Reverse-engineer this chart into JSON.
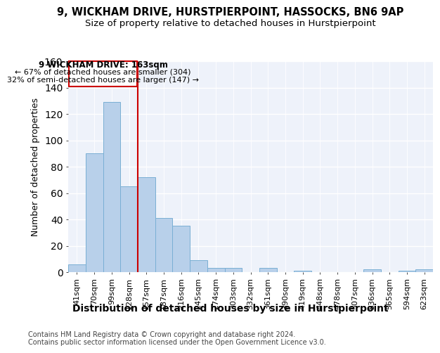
{
  "title_line1": "9, WICKHAM DRIVE, HURSTPIERPOINT, HASSOCKS, BN6 9AP",
  "title_line2": "Size of property relative to detached houses in Hurstpierpoint",
  "xlabel": "Distribution of detached houses by size in Hurstpierpoint",
  "ylabel": "Number of detached properties",
  "footnote": "Contains HM Land Registry data © Crown copyright and database right 2024.\nContains public sector information licensed under the Open Government Licence v3.0.",
  "categories": [
    "41sqm",
    "70sqm",
    "99sqm",
    "128sqm",
    "157sqm",
    "187sqm",
    "216sqm",
    "245sqm",
    "274sqm",
    "303sqm",
    "332sqm",
    "361sqm",
    "390sqm",
    "419sqm",
    "448sqm",
    "478sqm",
    "507sqm",
    "536sqm",
    "565sqm",
    "594sqm",
    "623sqm"
  ],
  "values": [
    6,
    90,
    129,
    65,
    72,
    41,
    35,
    9,
    3,
    3,
    0,
    3,
    0,
    1,
    0,
    0,
    0,
    2,
    0,
    1,
    2
  ],
  "bar_color": "#b8d0ea",
  "bar_edge_color": "#7aafd4",
  "vline_color": "#cc0000",
  "vline_x_index": 4,
  "annotation_box_color": "#cc0000",
  "property_label": "9 WICKHAM DRIVE: 163sqm",
  "pct_smaller": "67% of detached houses are smaller (304)",
  "pct_larger": "32% of semi-detached houses are larger (147)",
  "ylim": [
    0,
    160
  ],
  "yticks": [
    0,
    20,
    40,
    60,
    80,
    100,
    120,
    140,
    160
  ],
  "background_color": "#eef2fa",
  "grid_color": "#ffffff",
  "title_fontsize": 10.5,
  "subtitle_fontsize": 9.5,
  "ylabel_fontsize": 9,
  "xlabel_fontsize": 10,
  "tick_fontsize": 8,
  "annotation_fontsize": 8.5,
  "footnote_fontsize": 7
}
